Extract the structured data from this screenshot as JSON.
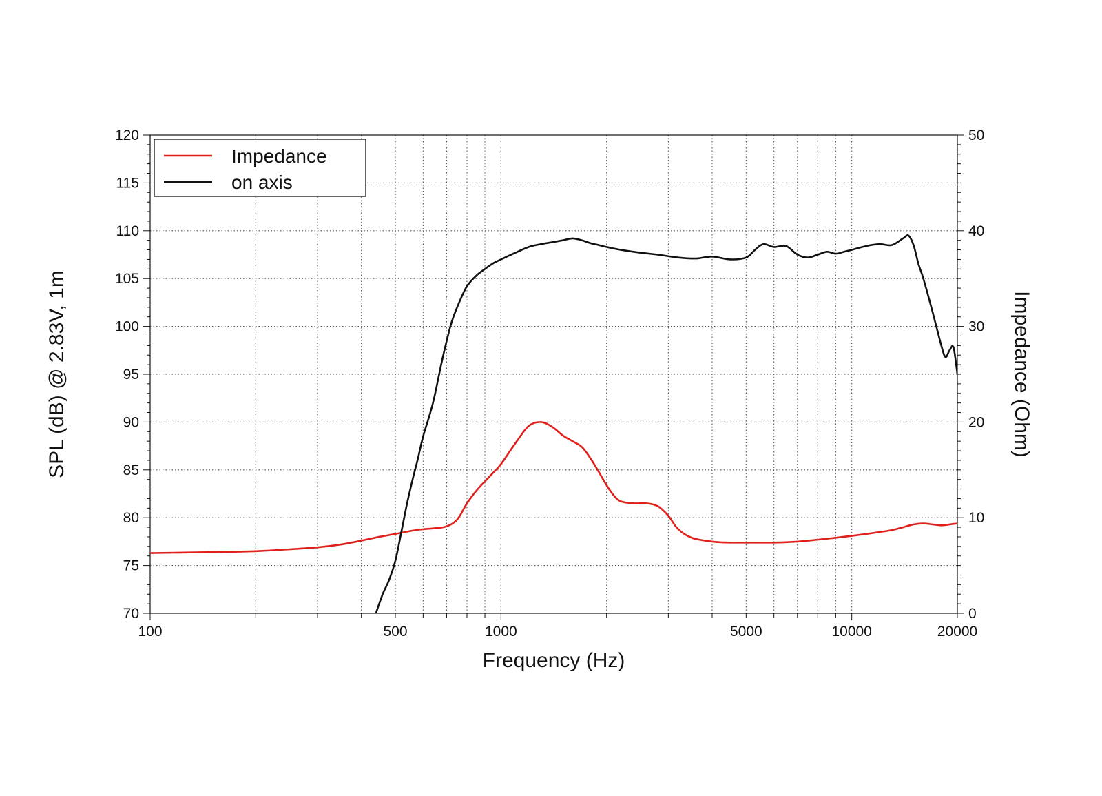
{
  "chart_data": {
    "type": "line",
    "xlabel": "Frequency (Hz)",
    "ylabel": "SPL (dB) @ 2.83V, 1m",
    "y2label": "Impedance (Ohm)",
    "x_scale": "log",
    "xlim": [
      100,
      20000
    ],
    "ylim": [
      70,
      120
    ],
    "y2lim": [
      0,
      50
    ],
    "grid": true,
    "legend_position": "top-left",
    "x_tick_labels": [
      "100",
      "500",
      "1000",
      "5000",
      "10000",
      "20000"
    ],
    "y_tick_labels": [
      "70",
      "75",
      "80",
      "85",
      "90",
      "95",
      "100",
      "105",
      "110",
      "115",
      "120"
    ],
    "y2_tick_labels": [
      "0",
      "10",
      "20",
      "30",
      "40",
      "50"
    ],
    "series": [
      {
        "name": "Impedance",
        "axis": "right",
        "color": "#e0201b",
        "x": [
          100,
          150,
          200,
          250,
          300,
          350,
          400,
          450,
          500,
          550,
          600,
          650,
          700,
          750,
          800,
          850,
          900,
          950,
          1000,
          1100,
          1200,
          1300,
          1400,
          1500,
          1600,
          1700,
          1800,
          1900,
          2000,
          2100,
          2200,
          2400,
          2600,
          2800,
          3000,
          3200,
          3500,
          4000,
          4500,
          5000,
          6000,
          7000,
          8000,
          9000,
          10000,
          11000,
          12000,
          13000,
          14000,
          15000,
          16000,
          17000,
          18000,
          19000,
          20000
        ],
        "y": [
          6.3,
          6.4,
          6.5,
          6.7,
          6.9,
          7.2,
          7.6,
          8.0,
          8.3,
          8.6,
          8.8,
          8.9,
          9.1,
          9.8,
          11.5,
          12.8,
          13.8,
          14.7,
          15.6,
          17.8,
          19.6,
          20.0,
          19.5,
          18.6,
          18.0,
          17.4,
          16.2,
          14.8,
          13.4,
          12.3,
          11.7,
          11.5,
          11.5,
          11.2,
          10.2,
          8.8,
          7.9,
          7.5,
          7.4,
          7.4,
          7.4,
          7.5,
          7.7,
          7.9,
          8.1,
          8.3,
          8.5,
          8.7,
          9.0,
          9.3,
          9.4,
          9.3,
          9.2,
          9.3,
          9.4
        ]
      },
      {
        "name": "on axis",
        "axis": "left",
        "color": "#111111",
        "x": [
          440,
          460,
          480,
          500,
          520,
          540,
          560,
          580,
          600,
          640,
          680,
          720,
          760,
          800,
          850,
          900,
          950,
          1000,
          1100,
          1200,
          1300,
          1400,
          1500,
          1600,
          1700,
          1800,
          1900,
          2000,
          2200,
          2500,
          2800,
          3200,
          3600,
          4000,
          4500,
          5000,
          5300,
          5600,
          6000,
          6500,
          7000,
          7500,
          8000,
          8500,
          9000,
          9500,
          10000,
          11000,
          12000,
          13000,
          14000,
          14500,
          15000,
          15500,
          16000,
          17000,
          18000,
          18500,
          19000,
          19500,
          20000
        ],
        "y": [
          70.0,
          72.0,
          73.5,
          75.5,
          78.5,
          81.5,
          84.0,
          86.2,
          88.5,
          92.0,
          96.5,
          100.2,
          102.5,
          104.2,
          105.3,
          106.0,
          106.6,
          107.0,
          107.7,
          108.3,
          108.6,
          108.8,
          109.0,
          109.2,
          109.0,
          108.7,
          108.5,
          108.3,
          108.0,
          107.7,
          107.5,
          107.2,
          107.1,
          107.3,
          107.0,
          107.2,
          108.0,
          108.6,
          108.3,
          108.4,
          107.5,
          107.2,
          107.5,
          107.8,
          107.6,
          107.8,
          108.0,
          108.4,
          108.6,
          108.5,
          109.2,
          109.5,
          108.5,
          106.5,
          105.0,
          101.5,
          98.0,
          96.8,
          97.5,
          97.8,
          95.0
        ]
      }
    ]
  }
}
